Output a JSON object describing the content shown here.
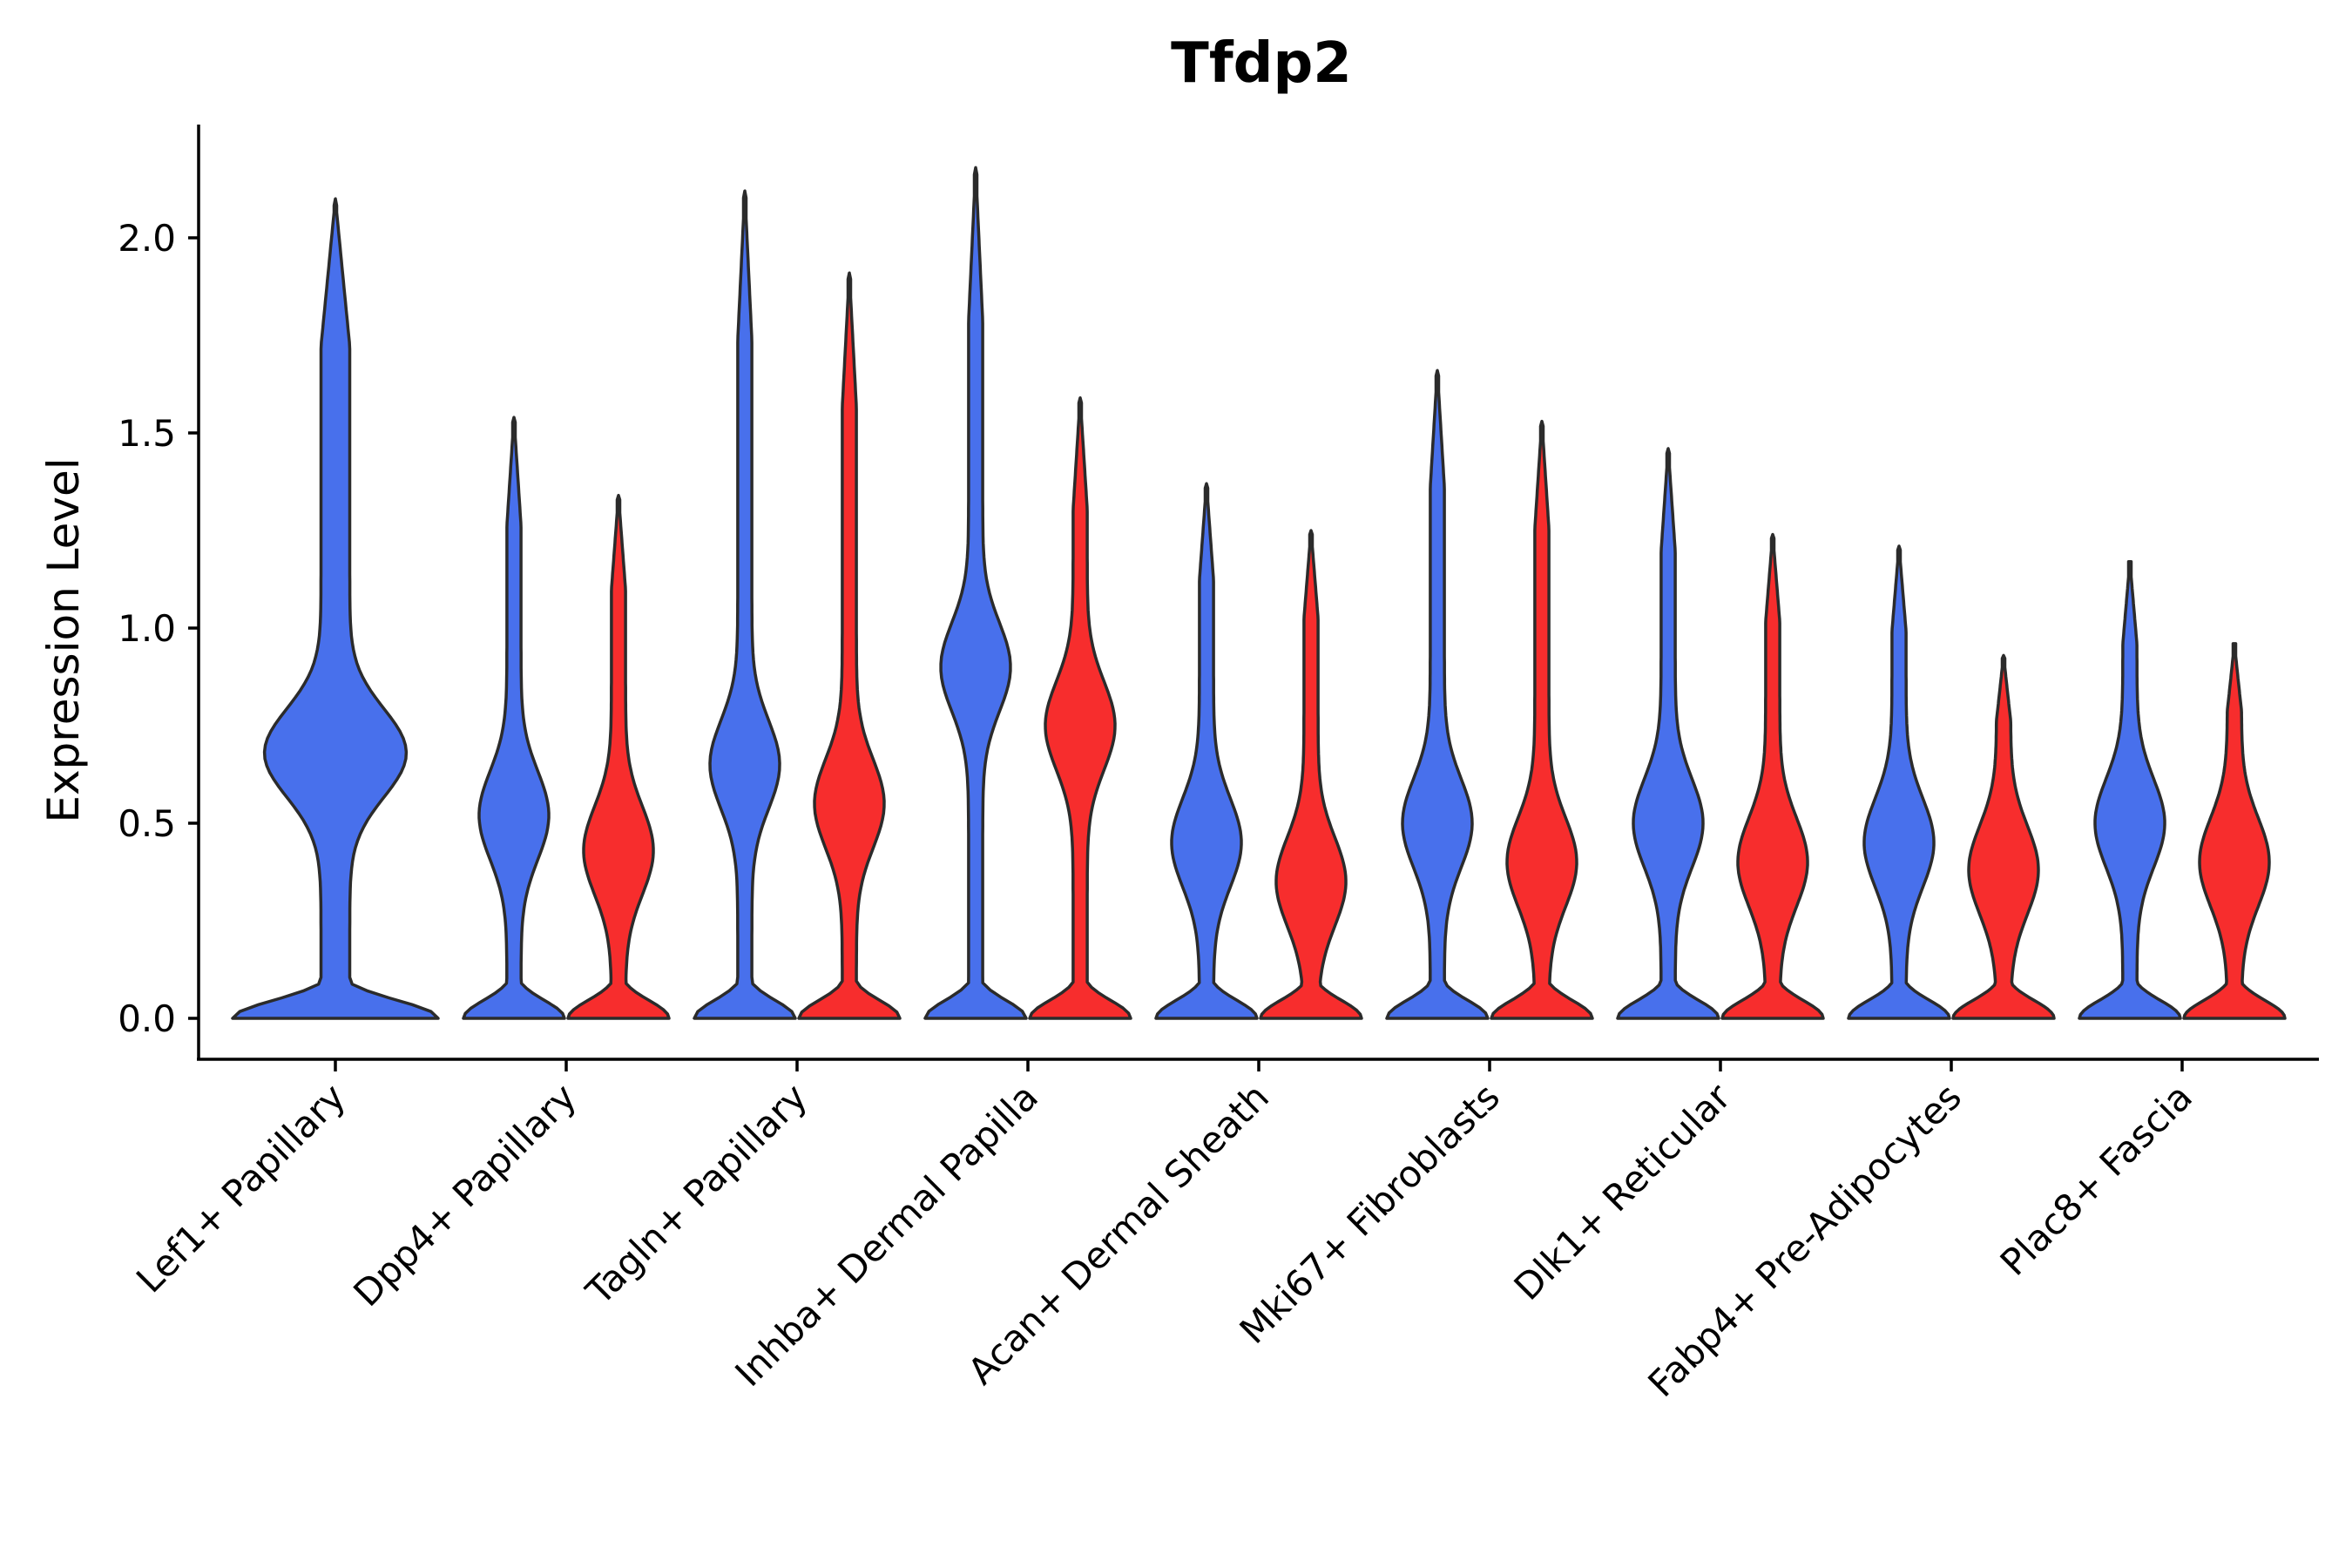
{
  "chart_data": {
    "type": "split-violin",
    "title": "Tfdp2",
    "xlabel": "",
    "ylabel": "Expression Level",
    "ylim": [
      -0.11,
      2.3
    ],
    "yticks": [
      "0.0",
      "0.5",
      "1.0",
      "1.5",
      "2.0"
    ],
    "ytick_values": [
      0.0,
      0.5,
      1.0,
      1.5,
      2.0
    ],
    "grid": false,
    "categories": [
      "Lef1+ Papillary",
      "Dpp4+ Papillary",
      "Tagln+ Papillary",
      "Inhba+ Dermal Papilla",
      "Acan+ Dermal Sheath",
      "Mki67+ Fibroblasts",
      "Dlk1+ Reticular",
      "Fabp4+ Pre-Adipocytes",
      "Plac8+ Fascia"
    ],
    "series": [
      {
        "name": "blue",
        "color": "#4870ec",
        "max_values": [
          2.1,
          1.54,
          2.12,
          2.18,
          1.37,
          1.66,
          1.46,
          1.21,
          1.17
        ],
        "upper_mode_values": [
          0.68,
          0.52,
          0.65,
          0.9,
          0.45,
          0.5,
          0.5,
          0.45,
          0.5
        ]
      },
      {
        "name": "red",
        "color": "#f72d2d",
        "max_values": [
          null,
          1.34,
          1.91,
          1.59,
          1.25,
          1.53,
          1.24,
          0.93,
          0.96
        ],
        "upper_mode_values": [
          null,
          0.43,
          0.55,
          0.75,
          0.35,
          0.4,
          0.4,
          0.38,
          0.4
        ]
      }
    ]
  }
}
